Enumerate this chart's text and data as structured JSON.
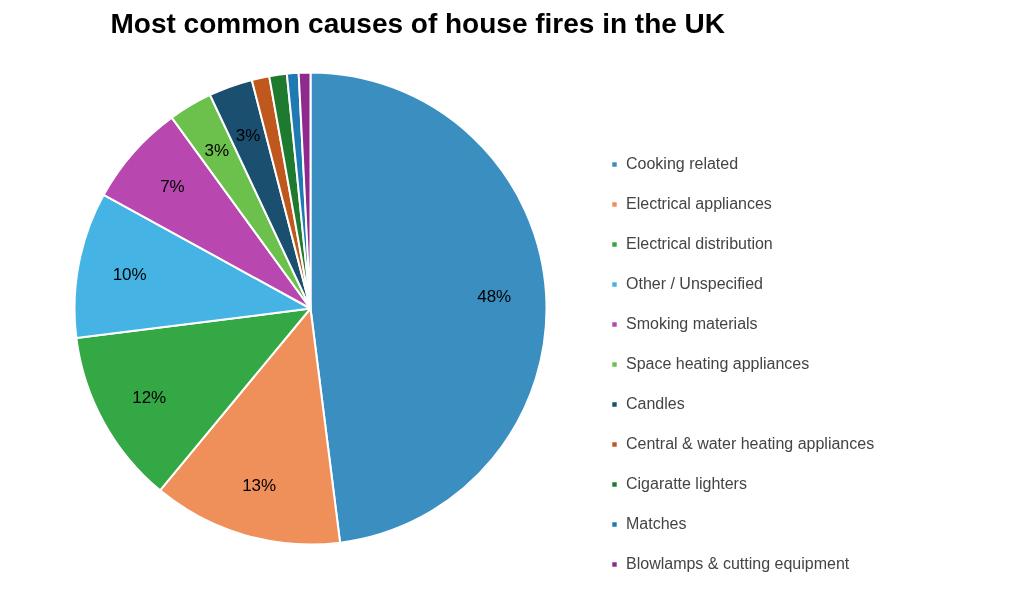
{
  "chart_data": {
    "type": "pie",
    "title": "Most common causes of house fires in the UK",
    "categories": [
      "Cooking related",
      "Electrical appliances",
      "Electrical distribution",
      "Other / Unspecified",
      "Smoking materials",
      "Space heating appliances",
      "Candles",
      "Central & water heating appliances",
      "Cigaratte lighters",
      "Matches",
      "Blowlamps & cutting equipment"
    ],
    "values": [
      48,
      13,
      12,
      10,
      7,
      3,
      3,
      1.2,
      1.2,
      0.8,
      0.8
    ],
    "value_labels": [
      "48%",
      "13%",
      "12%",
      "10%",
      "7%",
      "3%",
      "3%",
      null,
      null,
      null,
      null
    ],
    "colors": [
      "#3a8fc0",
      "#ef8f5a",
      "#34a844",
      "#45b4e4",
      "#b848b0",
      "#6cc04c",
      "#1a4f70",
      "#c0581e",
      "#1e7a2e",
      "#1e7ab0",
      "#8e2a8e"
    ],
    "legend": "right"
  }
}
